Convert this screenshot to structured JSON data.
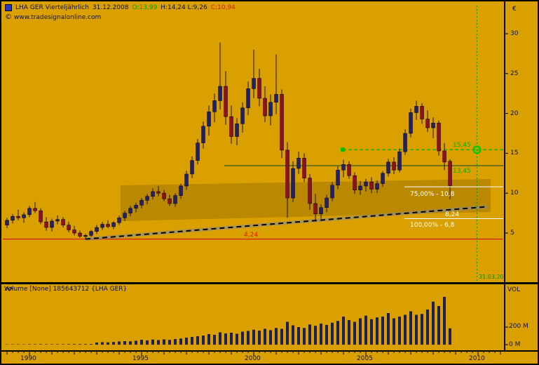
{
  "header": {
    "instrument": "LHA GER Vierteljährlich",
    "date": "31.12.2008",
    "open": "O:13,99",
    "high_low": "H:14,24 L:9,26",
    "close": "C:10,94",
    "copyright_mark": "©",
    "copyright_url": "www.tradesignalonline.com"
  },
  "price_axis": {
    "currency": "€",
    "ticks": [
      "30",
      "25",
      "20",
      "15",
      "10",
      "5"
    ]
  },
  "x_axis": {
    "ticks": [
      "1990",
      "1995",
      "2000",
      "2005",
      "2010"
    ]
  },
  "volume_pane": {
    "title": "Volume [None] 185643712 {LHA GER}",
    "axis_label": "VOL",
    "ticks": [
      "200 M",
      "0 M"
    ]
  },
  "annotations": {
    "fib75_label": "75,00% - 10,8",
    "fib100_label": "100,00% - 6,8",
    "trendline_value": "8,24",
    "support_value": "4,24",
    "resistance_upper_value": "15,45",
    "resistance_lower_value": "13,45",
    "target_date": "31.03.20"
  },
  "colors": {
    "background": "#D9A000",
    "candle_up": "#22226b",
    "candle_down": "#8f1022",
    "wick": "#101010",
    "volume_bar": "#1d1d57",
    "support_line": "#d40000",
    "resistance_dashed": "#00c000",
    "resistance_solid": "#51661c",
    "trendline_dash": "#000000",
    "trendline_shadow": "#8a8a8a",
    "fib_line": "#ffffff",
    "target_marker": "#00c800",
    "text_dark": "#0e0e4e"
  },
  "chart_data": {
    "type": "candlestick",
    "symbol": "LHA GER",
    "interval": "quarterly",
    "currency": "EUR",
    "ylim": [
      3,
      31
    ],
    "xlim_years": [
      1988.8,
      2011.5
    ],
    "columns": [
      "t",
      "open",
      "high",
      "low",
      "close",
      "volume_m"
    ],
    "candles": [
      [
        1989.0,
        6.0,
        6.9,
        5.6,
        6.6,
        3
      ],
      [
        1989.25,
        6.6,
        7.4,
        6.2,
        7.1,
        3
      ],
      [
        1989.5,
        7.1,
        7.9,
        6.6,
        6.9,
        3
      ],
      [
        1989.75,
        6.9,
        7.6,
        6.3,
        7.3,
        3
      ],
      [
        1990.0,
        7.3,
        8.4,
        7.0,
        8.1,
        4
      ],
      [
        1990.25,
        8.1,
        8.9,
        7.5,
        7.8,
        4
      ],
      [
        1990.5,
        7.8,
        8.1,
        6.1,
        6.4,
        5
      ],
      [
        1990.75,
        6.4,
        7.0,
        5.3,
        5.7,
        4
      ],
      [
        1991.0,
        5.7,
        6.8,
        5.2,
        6.5,
        4
      ],
      [
        1991.25,
        6.5,
        7.2,
        6.1,
        6.7,
        4
      ],
      [
        1991.5,
        6.7,
        7.0,
        5.7,
        6.0,
        4
      ],
      [
        1991.75,
        6.0,
        6.4,
        5.1,
        5.4,
        5
      ],
      [
        1992.0,
        5.4,
        5.9,
        4.7,
        5.0,
        6
      ],
      [
        1992.25,
        5.0,
        5.3,
        4.4,
        4.6,
        6
      ],
      [
        1992.5,
        4.6,
        4.9,
        4.24,
        4.7,
        6
      ],
      [
        1992.75,
        4.7,
        5.4,
        4.5,
        5.2,
        7
      ],
      [
        1993.0,
        5.2,
        6.0,
        4.9,
        5.7,
        24
      ],
      [
        1993.25,
        5.7,
        6.4,
        5.4,
        6.1,
        28
      ],
      [
        1993.5,
        6.1,
        6.6,
        5.6,
        5.8,
        26
      ],
      [
        1993.75,
        5.8,
        6.5,
        5.5,
        6.3,
        30
      ],
      [
        1994.0,
        6.3,
        7.2,
        6.0,
        6.9,
        36
      ],
      [
        1994.25,
        6.9,
        7.8,
        6.5,
        7.5,
        40
      ],
      [
        1994.5,
        7.5,
        8.4,
        7.1,
        8.1,
        38
      ],
      [
        1994.75,
        8.1,
        8.8,
        7.6,
        8.5,
        44
      ],
      [
        1995.0,
        8.5,
        9.4,
        8.1,
        9.1,
        55
      ],
      [
        1995.25,
        9.1,
        9.9,
        8.6,
        9.6,
        48
      ],
      [
        1995.5,
        9.6,
        10.6,
        9.2,
        10.2,
        58
      ],
      [
        1995.75,
        10.2,
        10.9,
        9.6,
        10.0,
        52
      ],
      [
        1996.0,
        10.0,
        10.4,
        9.0,
        9.3,
        60
      ],
      [
        1996.25,
        9.3,
        9.8,
        8.4,
        8.7,
        54
      ],
      [
        1996.5,
        8.7,
        10.0,
        8.3,
        9.7,
        64
      ],
      [
        1996.75,
        9.7,
        11.2,
        9.3,
        10.9,
        70
      ],
      [
        1997.0,
        10.9,
        12.8,
        10.4,
        12.4,
        80
      ],
      [
        1997.25,
        12.4,
        14.6,
        11.9,
        14.1,
        88
      ],
      [
        1997.5,
        14.1,
        16.8,
        13.6,
        16.3,
        96
      ],
      [
        1997.75,
        16.3,
        19.0,
        15.6,
        18.4,
        104
      ],
      [
        1998.0,
        18.4,
        21.0,
        17.2,
        20.2,
        120
      ],
      [
        1998.25,
        20.2,
        22.5,
        18.9,
        21.6,
        112
      ],
      [
        1998.5,
        21.6,
        28.9,
        20.5,
        23.4,
        140
      ],
      [
        1998.75,
        23.4,
        25.3,
        18.6,
        19.6,
        128
      ],
      [
        1999.0,
        19.6,
        21.0,
        16.2,
        17.1,
        136
      ],
      [
        1999.25,
        17.1,
        19.4,
        16.0,
        18.7,
        124
      ],
      [
        1999.5,
        18.7,
        21.4,
        17.6,
        20.7,
        148
      ],
      [
        1999.75,
        20.7,
        24.0,
        19.8,
        23.1,
        156
      ],
      [
        2000.0,
        23.1,
        28.0,
        21.9,
        24.4,
        170
      ],
      [
        2000.25,
        24.4,
        25.6,
        20.9,
        21.9,
        160
      ],
      [
        2000.5,
        21.9,
        23.4,
        18.9,
        19.7,
        180
      ],
      [
        2000.75,
        19.7,
        22.4,
        18.5,
        21.4,
        165
      ],
      [
        2001.0,
        21.4,
        27.4,
        19.9,
        22.4,
        190
      ],
      [
        2001.25,
        22.4,
        23.0,
        14.4,
        15.4,
        180
      ],
      [
        2001.5,
        15.4,
        16.4,
        6.9,
        9.4,
        260
      ],
      [
        2001.75,
        9.4,
        14.0,
        8.9,
        13.1,
        220
      ],
      [
        2002.0,
        13.1,
        15.2,
        12.4,
        14.4,
        200
      ],
      [
        2002.25,
        14.4,
        15.0,
        11.4,
        11.9,
        190
      ],
      [
        2002.5,
        11.9,
        12.4,
        7.9,
        8.7,
        230
      ],
      [
        2002.75,
        8.7,
        9.9,
        6.6,
        7.4,
        215
      ],
      [
        2003.0,
        7.4,
        8.6,
        6.8,
        8.2,
        240
      ],
      [
        2003.25,
        8.2,
        9.8,
        7.6,
        9.4,
        225
      ],
      [
        2003.5,
        9.4,
        11.4,
        9.0,
        11.0,
        250
      ],
      [
        2003.75,
        11.0,
        13.4,
        10.5,
        12.9,
        270
      ],
      [
        2004.0,
        12.9,
        14.2,
        12.0,
        13.6,
        320
      ],
      [
        2004.25,
        13.6,
        14.0,
        11.8,
        12.2,
        280
      ],
      [
        2004.5,
        12.2,
        12.6,
        9.9,
        10.4,
        260
      ],
      [
        2004.75,
        10.4,
        11.5,
        9.8,
        10.9,
        300
      ],
      [
        2005.0,
        10.9,
        11.8,
        10.2,
        11.4,
        330
      ],
      [
        2005.25,
        11.4,
        12.0,
        10.0,
        10.5,
        290
      ],
      [
        2005.5,
        10.5,
        11.6,
        10.0,
        11.2,
        310
      ],
      [
        2005.75,
        11.2,
        12.8,
        10.8,
        12.5,
        320
      ],
      [
        2006.0,
        12.5,
        14.3,
        12.1,
        13.9,
        360
      ],
      [
        2006.25,
        13.9,
        14.5,
        12.4,
        12.9,
        300
      ],
      [
        2006.5,
        12.9,
        15.6,
        12.6,
        15.2,
        320
      ],
      [
        2006.75,
        15.2,
        18.0,
        14.8,
        17.5,
        340
      ],
      [
        2007.0,
        17.5,
        20.6,
        17.0,
        20.1,
        380
      ],
      [
        2007.25,
        20.1,
        21.6,
        19.2,
        20.9,
        340
      ],
      [
        2007.5,
        20.9,
        21.3,
        18.7,
        19.3,
        350
      ],
      [
        2007.75,
        19.3,
        20.4,
        17.7,
        18.2,
        400
      ],
      [
        2008.0,
        18.2,
        19.5,
        16.9,
        18.8,
        490
      ],
      [
        2008.25,
        18.8,
        19.1,
        14.7,
        15.3,
        440
      ],
      [
        2008.5,
        15.3,
        16.3,
        12.9,
        13.9,
        545
      ],
      [
        2008.75,
        13.99,
        14.24,
        9.26,
        10.94,
        186
      ]
    ],
    "levels": {
      "support": 4.24,
      "fib_75": 10.8,
      "fib_100": 6.8,
      "resistance_dashed": 15.45,
      "resistance_solid": 13.45,
      "trendline_end_value": 8.24
    },
    "trendline": {
      "t1": 1992.5,
      "p1": 4.24,
      "t2": 2010.4,
      "p2": 8.3
    },
    "target": {
      "t": 2009.95,
      "p": 15.45
    },
    "volume_axis": {
      "ticks_m": [
        200,
        0
      ],
      "unit": "M"
    }
  }
}
